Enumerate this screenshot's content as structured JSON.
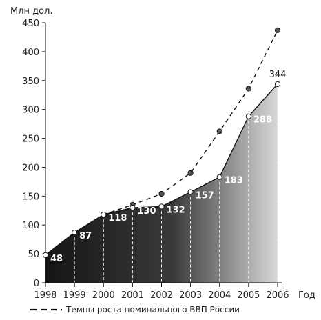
{
  "chart_data": {
    "type": "area",
    "ylabel": "Млн дол.",
    "xlabel": "Год",
    "ylim": [
      0,
      450
    ],
    "yticks": [
      0,
      50,
      100,
      150,
      200,
      250,
      300,
      350,
      400,
      450
    ],
    "x": [
      "1998",
      "1999",
      "2000",
      "2001",
      "2002",
      "2003",
      "2004",
      "2005",
      "2006"
    ],
    "series": [
      {
        "values": [
          48,
          87,
          118,
          130,
          132,
          157,
          183,
          288,
          344
        ],
        "labels": [
          "48",
          "87",
          "118",
          "130",
          "132",
          "157",
          "183",
          "288",
          "344"
        ]
      },
      {
        "name": "Темпы роста номинального ВВП России",
        "x": [
          "2001",
          "2002",
          "2003",
          "2004",
          "2005",
          "2006"
        ],
        "values": [
          135,
          154,
          190,
          262,
          336,
          437
        ]
      }
    ],
    "legend": {
      "text": "Темпы роста номинального ВВП России",
      "position": "bottom"
    },
    "grid": false
  }
}
